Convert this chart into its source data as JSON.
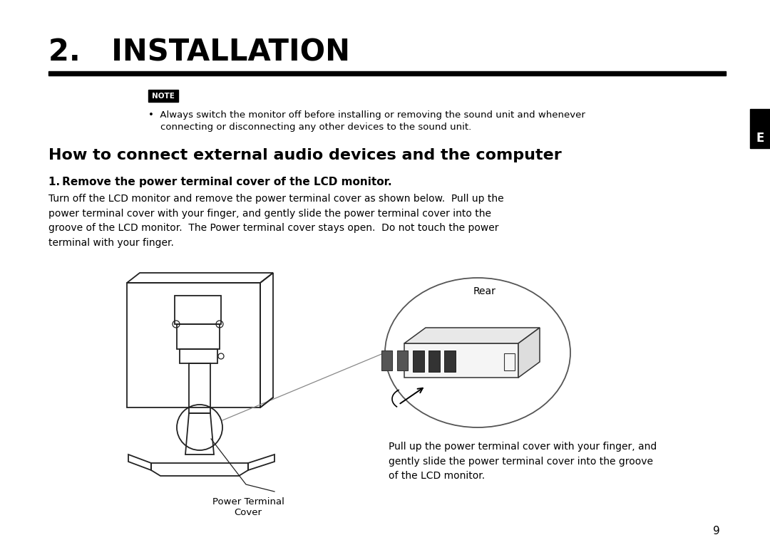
{
  "bg_color": "#ffffff",
  "title": "2.   INSTALLATION",
  "title_fontsize": 30,
  "note_box_text": "NOTE",
  "note_text_line1": "•  Always switch the monitor off before installing or removing the sound unit and whenever",
  "note_text_line2": "    connecting or disconnecting any other devices to the sound unit.",
  "section_title": "How to connect external audio devices and the computer",
  "step1_title": "1. Remove the power terminal cover of the LCD monitor.",
  "body_text": "Turn off the LCD monitor and remove the power terminal cover as shown below.  Pull up the\npower terminal cover with your finger, and gently slide the power terminal cover into the\ngroove of the LCD monitor.  The Power terminal cover stays open.  Do not touch the power\nterminal with your finger.",
  "caption_left_line1": "Power Terminal",
  "caption_left_line2": "Cover",
  "rear_label": "Rear",
  "caption_right": "Pull up the power terminal cover with your finger, and\ngently slide the power terminal cover into the groove\nof the LCD monitor.",
  "page_number": "9",
  "side_tab": "E",
  "sidebar_color": "#000000",
  "text_color": "#000000",
  "line_color": "#111111"
}
